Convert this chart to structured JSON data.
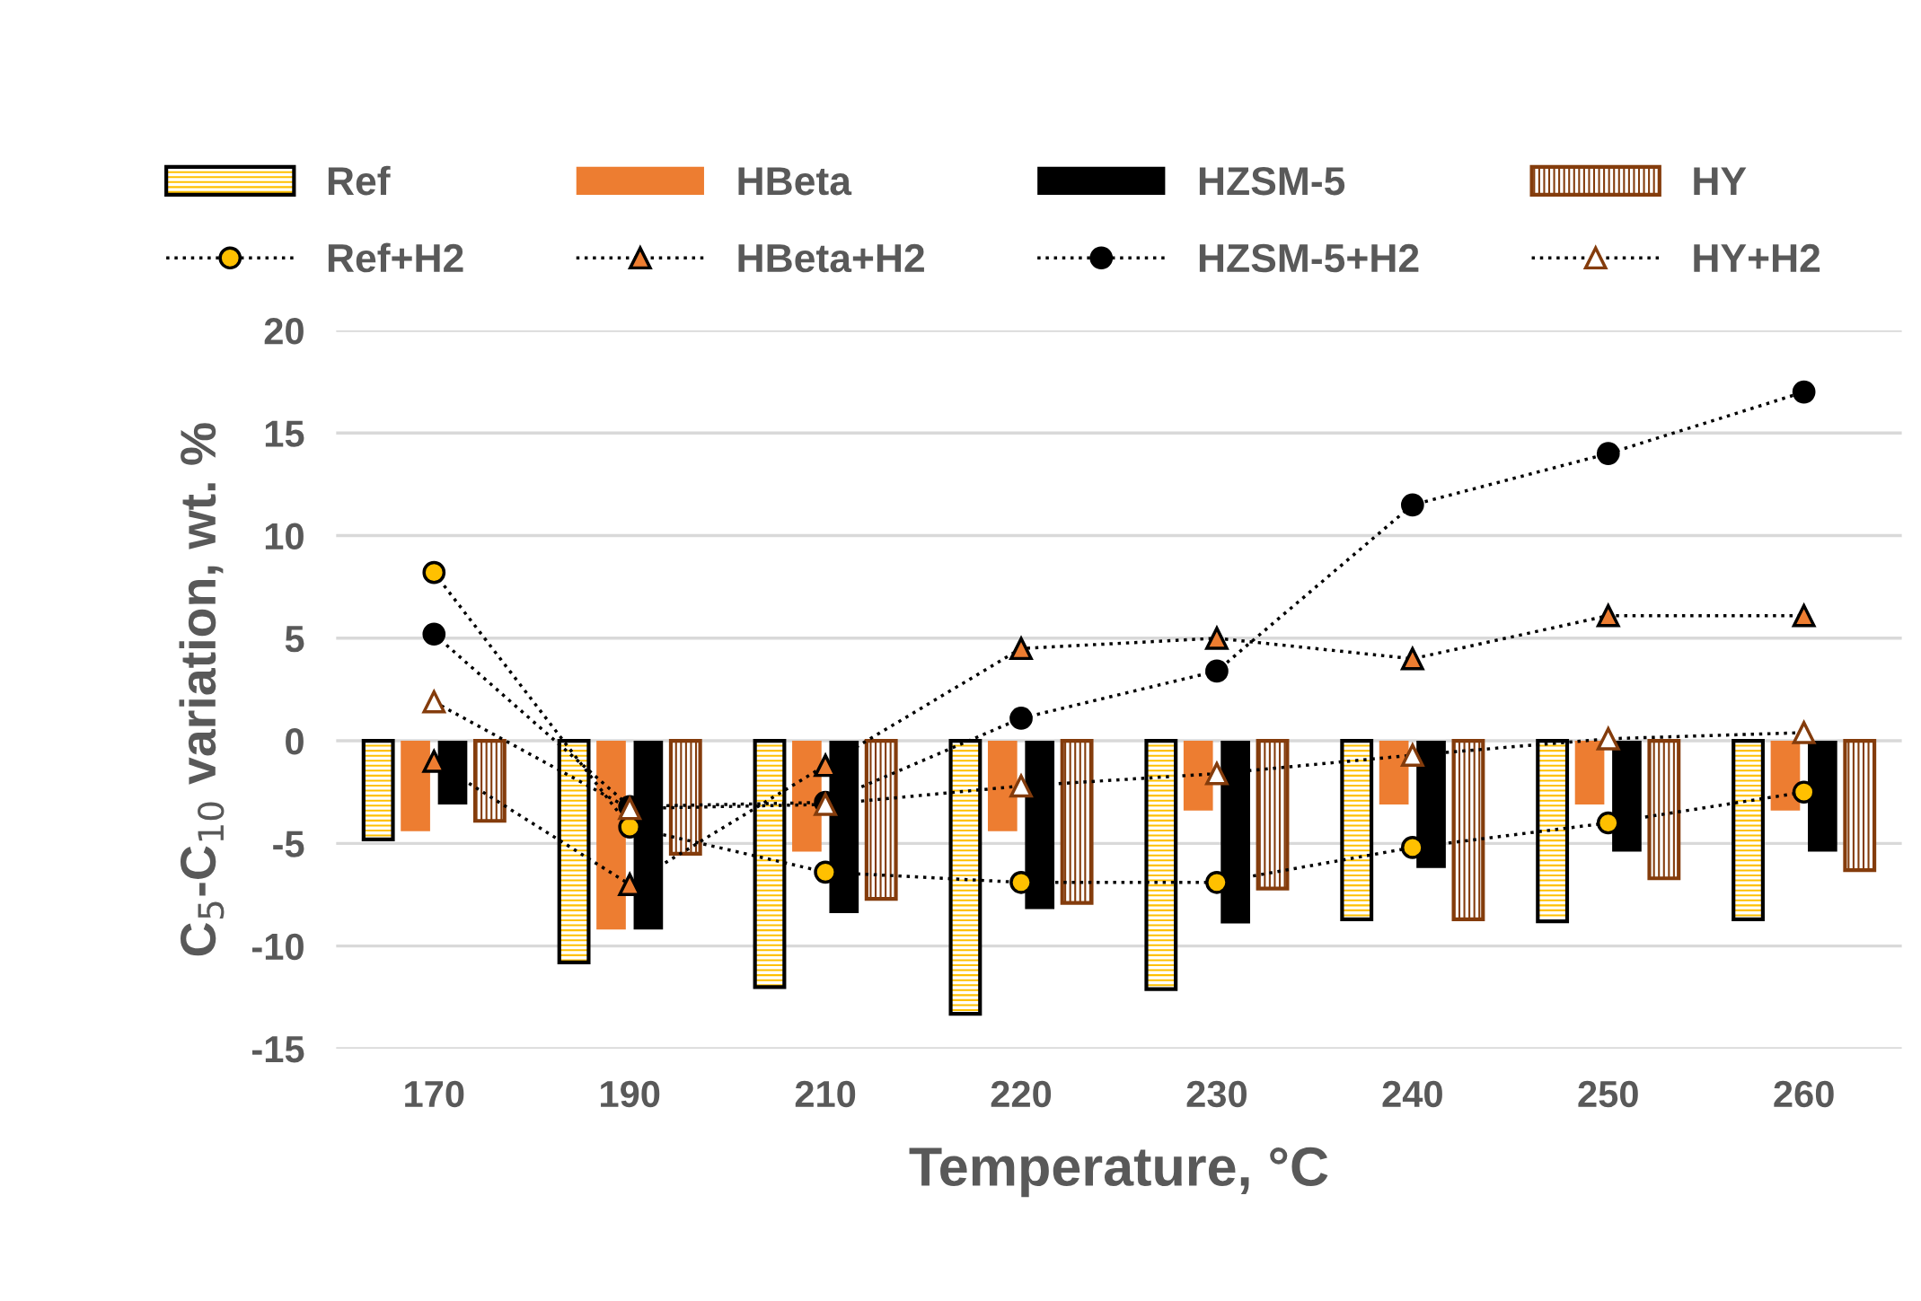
{
  "chart_data": {
    "type": "bar",
    "xlabel": "Temperature, °C",
    "ylabel": "C$_{5}$-C$_{10}$ variation, wt. %",
    "categories": [
      "170",
      "190",
      "210",
      "220",
      "230",
      "240",
      "250",
      "260"
    ],
    "ylim": [
      -15,
      20
    ],
    "yticks": [
      -15,
      -10,
      -5,
      0,
      5,
      10,
      15,
      20
    ],
    "grid": "y",
    "legend": "top",
    "line_style": "dotted",
    "series": [
      {
        "name": "Ref",
        "color": "#ffc000",
        "values": [
          -4.8,
          -10.8,
          -12.0,
          -13.3,
          -12.1,
          -8.7,
          -8.8,
          -8.7
        ]
      },
      {
        "name": "HBeta",
        "color": "#ed7d31",
        "values": [
          -4.4,
          -9.2,
          -5.4,
          -4.4,
          -3.4,
          -3.1,
          -3.1,
          -3.4
        ]
      },
      {
        "name": "HZSM-5",
        "color": "#000000",
        "values": [
          -3.1,
          -9.2,
          -8.4,
          -8.2,
          -8.9,
          -6.2,
          -5.4,
          -5.4
        ]
      },
      {
        "name": "HY",
        "color": "#843c0c",
        "values": [
          -3.9,
          -5.5,
          -7.7,
          -7.9,
          -7.2,
          -8.7,
          -6.7,
          -6.3
        ]
      },
      {
        "name": "Ref+H2",
        "type": "line",
        "marker": "circle",
        "color": "#ffc000",
        "values": [
          8.2,
          -4.2,
          -6.4,
          -6.9,
          -6.9,
          -5.2,
          -4.0,
          -2.5
        ]
      },
      {
        "name": "HBeta+H2",
        "type": "line",
        "marker": "triangle",
        "color": "#ed7d31",
        "values": [
          -1.0,
          -7.0,
          -1.2,
          4.5,
          5.0,
          4.0,
          6.1,
          6.1
        ]
      },
      {
        "name": "HZSM-5+H2",
        "type": "line",
        "marker": "circle",
        "color": "#000000",
        "values": [
          5.2,
          -3.2,
          -3.0,
          1.1,
          3.4,
          11.5,
          14.0,
          17.0
        ]
      },
      {
        "name": "HY+H2",
        "type": "line",
        "marker": "triangle",
        "color": "#843c0c",
        "values": [
          1.9,
          -3.3,
          -3.1,
          -2.2,
          -1.6,
          -0.7,
          0.1,
          0.4
        ]
      }
    ]
  }
}
